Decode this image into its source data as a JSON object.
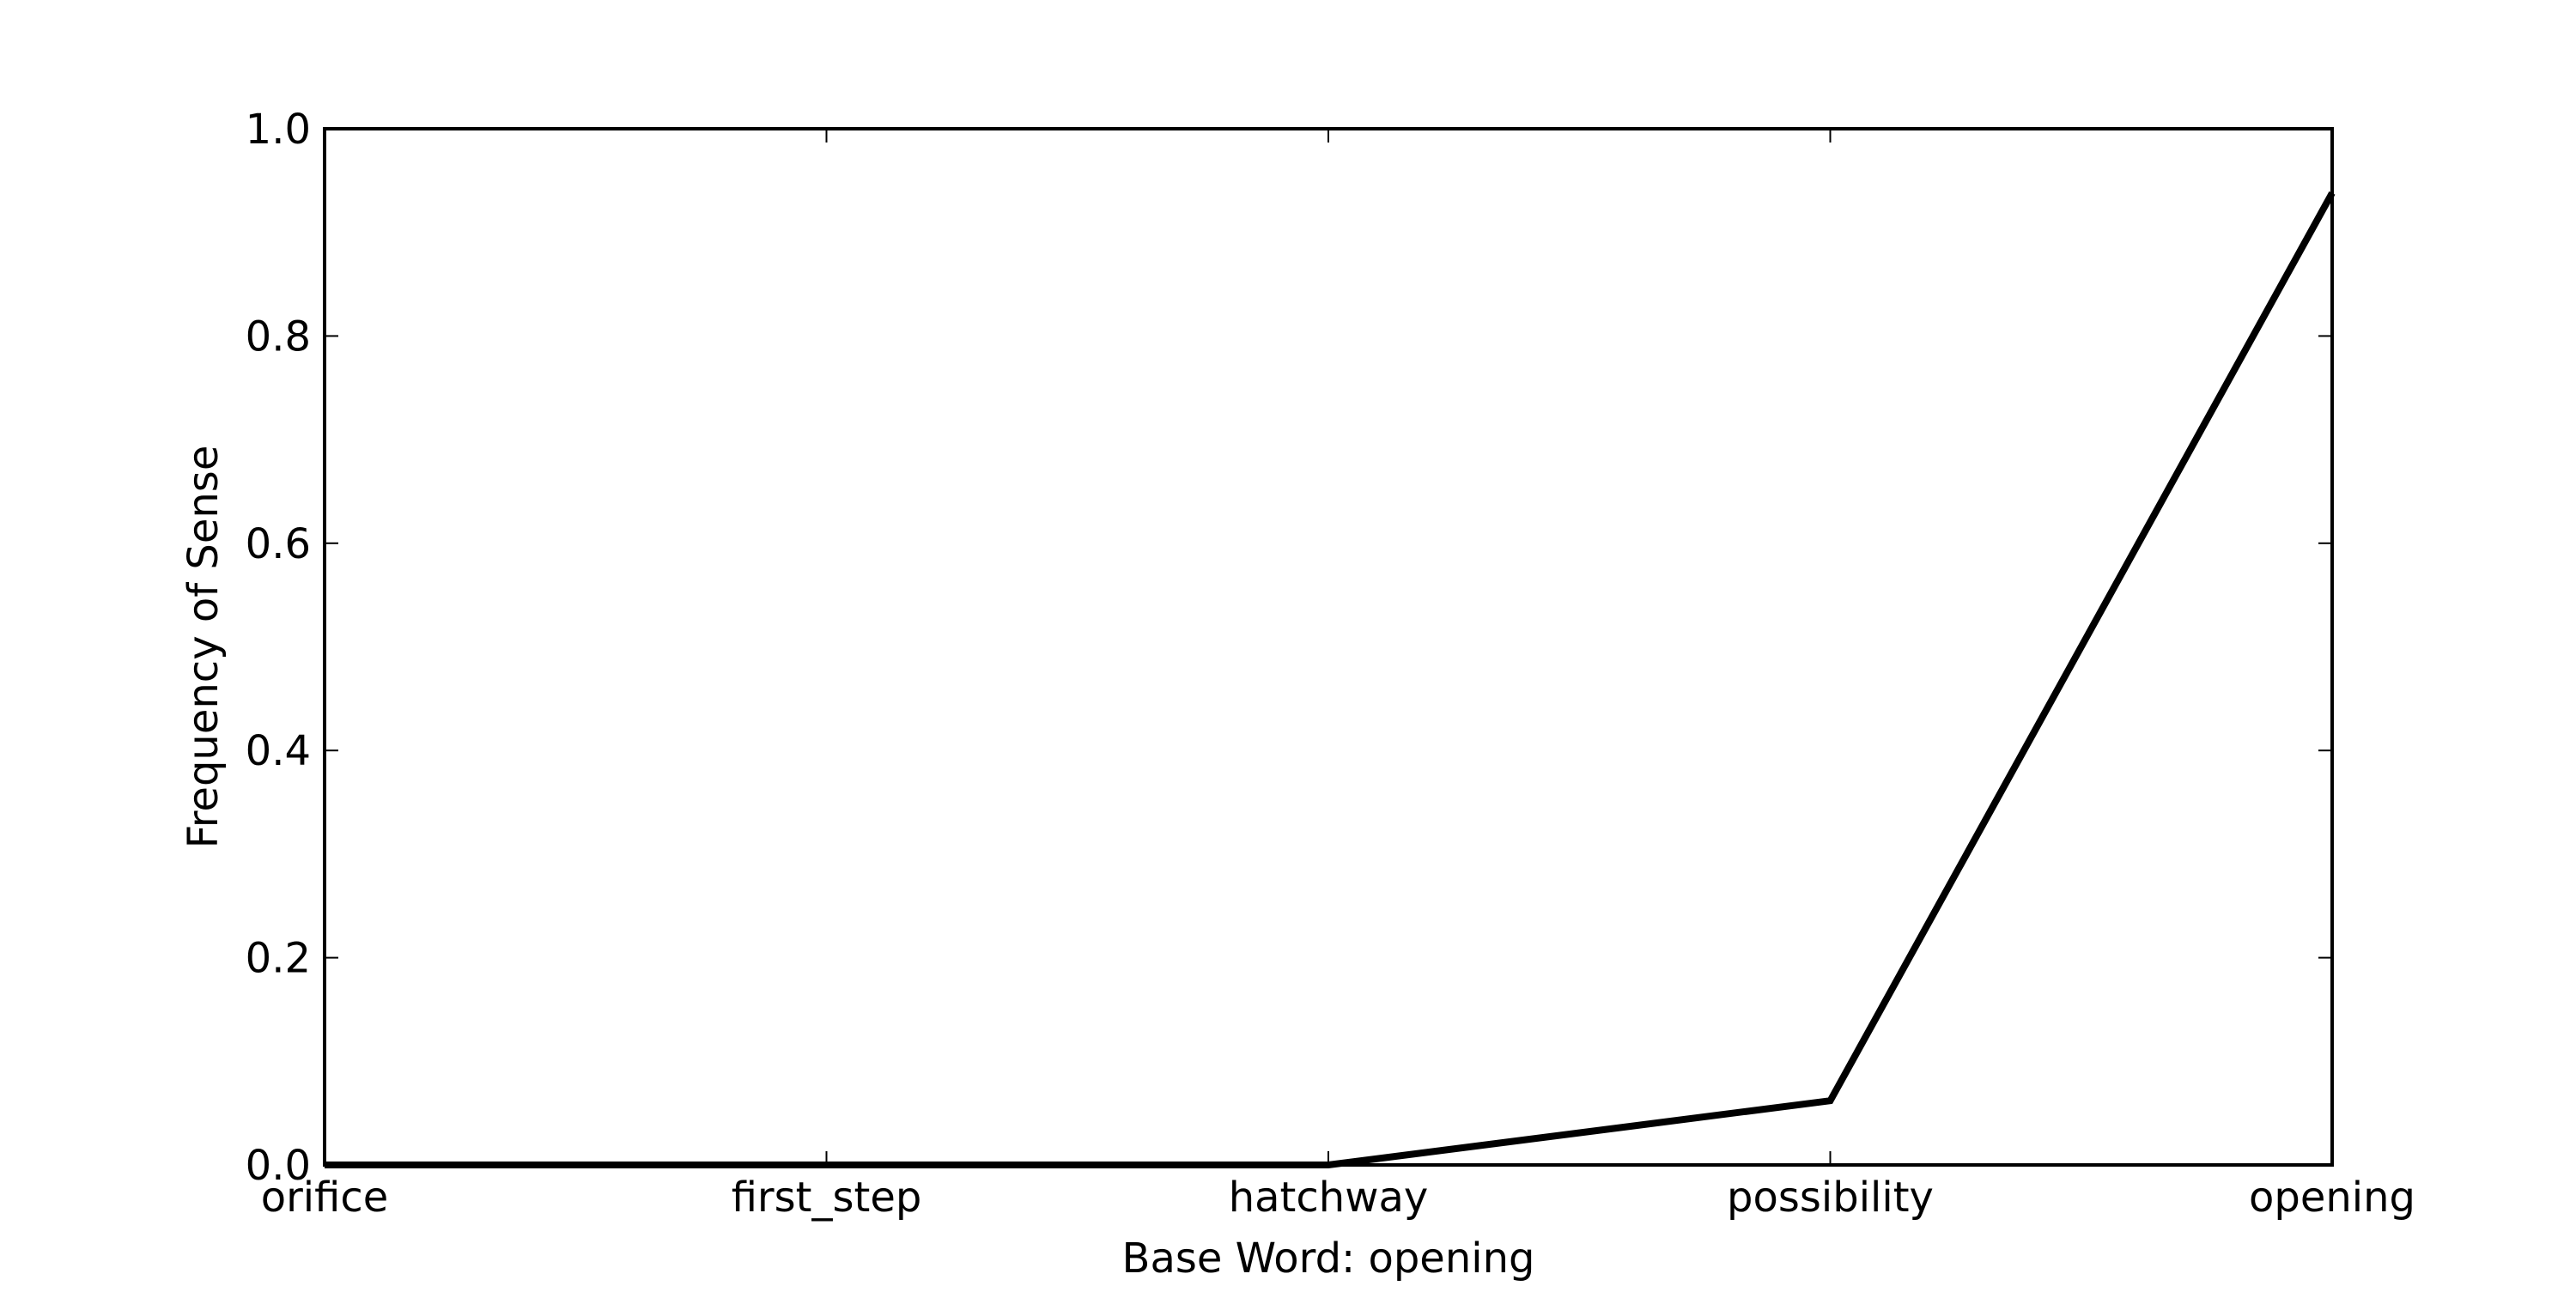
{
  "chart_data": {
    "type": "line",
    "categories": [
      "orifice",
      "first_step",
      "hatchway",
      "possibility",
      "opening"
    ],
    "series": [
      {
        "values": [
          0.0,
          0.0,
          0.0,
          0.062,
          0.938
        ]
      }
    ],
    "xlabel": "Base Word: opening",
    "ylabel": "Frequency of Sense",
    "ylim": [
      0.0,
      1.0
    ],
    "yticks": [
      "0.0",
      "0.2",
      "0.4",
      "0.6",
      "0.8",
      "1.0"
    ],
    "grid": false,
    "line_color": "#000000"
  }
}
